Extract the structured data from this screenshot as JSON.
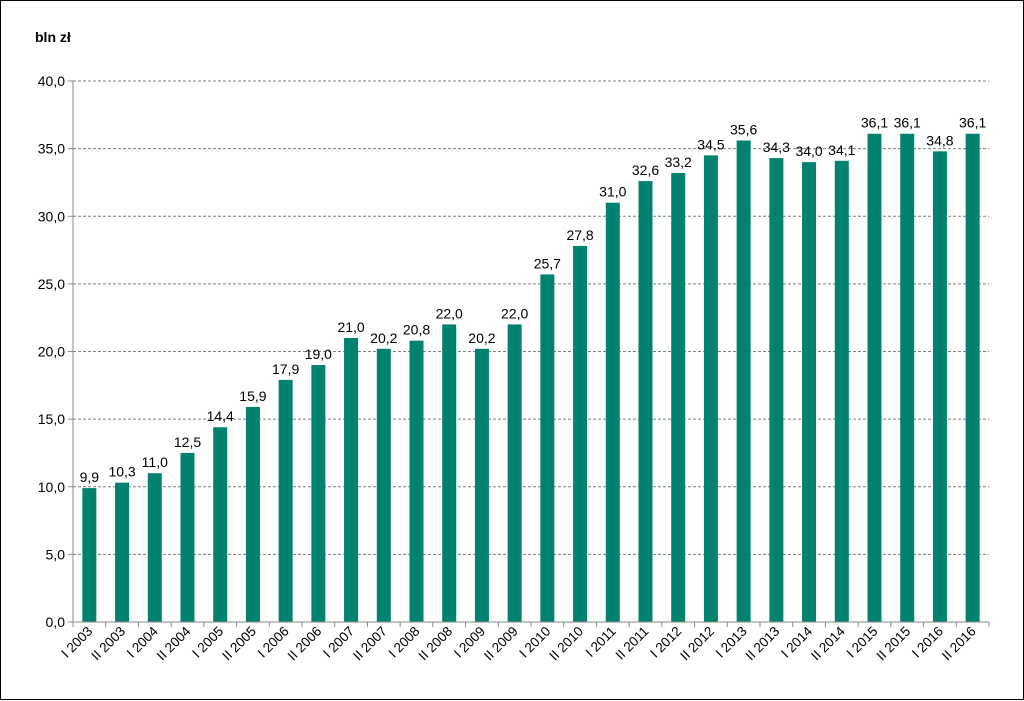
{
  "chart_data": {
    "type": "bar",
    "unit_label": "bln zł",
    "categories": [
      "I 2003",
      "II 2003",
      "I 2004",
      "II 2004",
      "I 2005",
      "II 2005",
      "I 2006",
      "II 2006",
      "I 2007",
      "II 2007",
      "I 2008",
      "II 2008",
      "I 2009",
      "II 2009",
      "I 2010",
      "II 2010",
      "I 2011",
      "II 2011",
      "I 2012",
      "II 2012",
      "I 2013",
      "II 2013",
      "I 2014",
      "II 2014",
      "I 2015",
      "II 2015",
      "I 2016",
      "II 2016"
    ],
    "values": [
      9.9,
      10.3,
      11.0,
      12.5,
      14.4,
      15.9,
      17.9,
      19.0,
      21.0,
      20.2,
      20.8,
      22.0,
      20.2,
      22.0,
      25.7,
      27.8,
      31.0,
      32.6,
      33.2,
      34.5,
      35.6,
      34.3,
      34.0,
      34.1,
      36.1,
      36.1,
      34.8,
      36.1
    ],
    "data_labels": [
      "9,9",
      "10,3",
      "11,0",
      "12,5",
      "14,4",
      "15,9",
      "17,9",
      "19,0",
      "21,0",
      "20,2",
      "20,8",
      "22,0",
      "20,2",
      "22,0",
      "25,7",
      "27,8",
      "31,0",
      "32,6",
      "33,2",
      "34,5",
      "35,6",
      "34,3",
      "34,0",
      "34,1",
      "36,1",
      "36,1",
      "34,8",
      "36,1"
    ],
    "y_ticks": [
      "0,0",
      "5,0",
      "10,0",
      "15,0",
      "20,0",
      "25,0",
      "30,0",
      "35,0",
      "40,0"
    ],
    "ylim": [
      0,
      40
    ],
    "y_step": 5,
    "grid": "horizontal-dashed",
    "bar_color": "#00826F",
    "legend": "none"
  }
}
